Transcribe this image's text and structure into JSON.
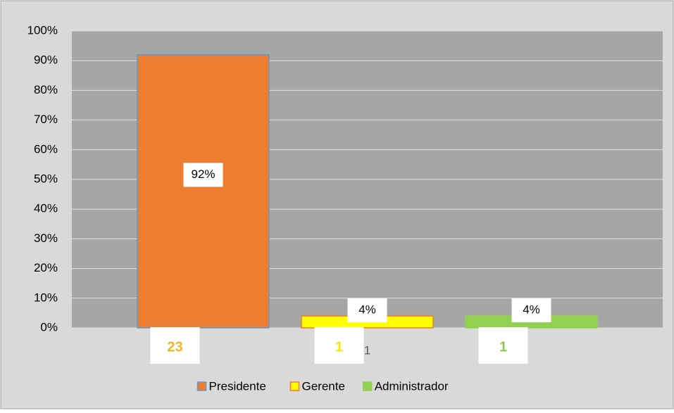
{
  "chart_data": {
    "type": "bar",
    "categories": [
      "1"
    ],
    "series": [
      {
        "name": "Presidente",
        "color": "#ed7d31",
        "edgecolor": "#5b9bd5",
        "values": [
          92
        ],
        "value_labels": [
          "92%"
        ],
        "counts": [
          23
        ],
        "count_color": "#f5b324"
      },
      {
        "name": "Gerente",
        "color": "#ffff00",
        "edgecolor": "#ed7d31",
        "values": [
          4
        ],
        "value_labels": [
          "4%"
        ],
        "counts": [
          1
        ],
        "count_color": "#ffe600"
      },
      {
        "name": "Administrador",
        "color": "#92d050",
        "edgecolor": "#92d050",
        "values": [
          4
        ],
        "value_labels": [
          "4%"
        ],
        "counts": [
          1
        ],
        "count_color": "#8cc84b"
      }
    ],
    "ylim": [
      0,
      100
    ],
    "yticks": [
      {
        "value": 0,
        "label": "0%"
      },
      {
        "value": 10,
        "label": "10%"
      },
      {
        "value": 20,
        "label": "20%"
      },
      {
        "value": 30,
        "label": "30%"
      },
      {
        "value": 40,
        "label": "40%"
      },
      {
        "value": 50,
        "label": "50%"
      },
      {
        "value": 60,
        "label": "60%"
      },
      {
        "value": 70,
        "label": "70%"
      },
      {
        "value": 80,
        "label": "80%"
      },
      {
        "value": 90,
        "label": "90%"
      },
      {
        "value": 100,
        "label": "100%"
      }
    ],
    "grid": true,
    "legend": "bottom"
  }
}
